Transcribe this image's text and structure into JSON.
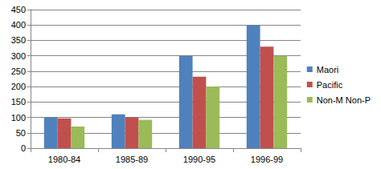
{
  "chart_data": {
    "type": "bar",
    "categories": [
      "1980-84",
      "1985-89",
      "1990-95",
      "1996-99"
    ],
    "series": [
      {
        "name": "Maori",
        "color": "#4f81bd",
        "values": [
          100,
          110,
          300,
          400
        ]
      },
      {
        "name": "Pacific",
        "color": "#c0504d",
        "values": [
          97,
          100,
          232,
          330
        ]
      },
      {
        "name": "Non-M Non-P",
        "color": "#9bbb59",
        "values": [
          70,
          92,
          200,
          300
        ]
      }
    ],
    "ylim": [
      0,
      450
    ],
    "yticks": [
      0,
      50,
      100,
      150,
      200,
      250,
      300,
      350,
      400,
      450
    ],
    "grid": true,
    "legend": "right"
  }
}
